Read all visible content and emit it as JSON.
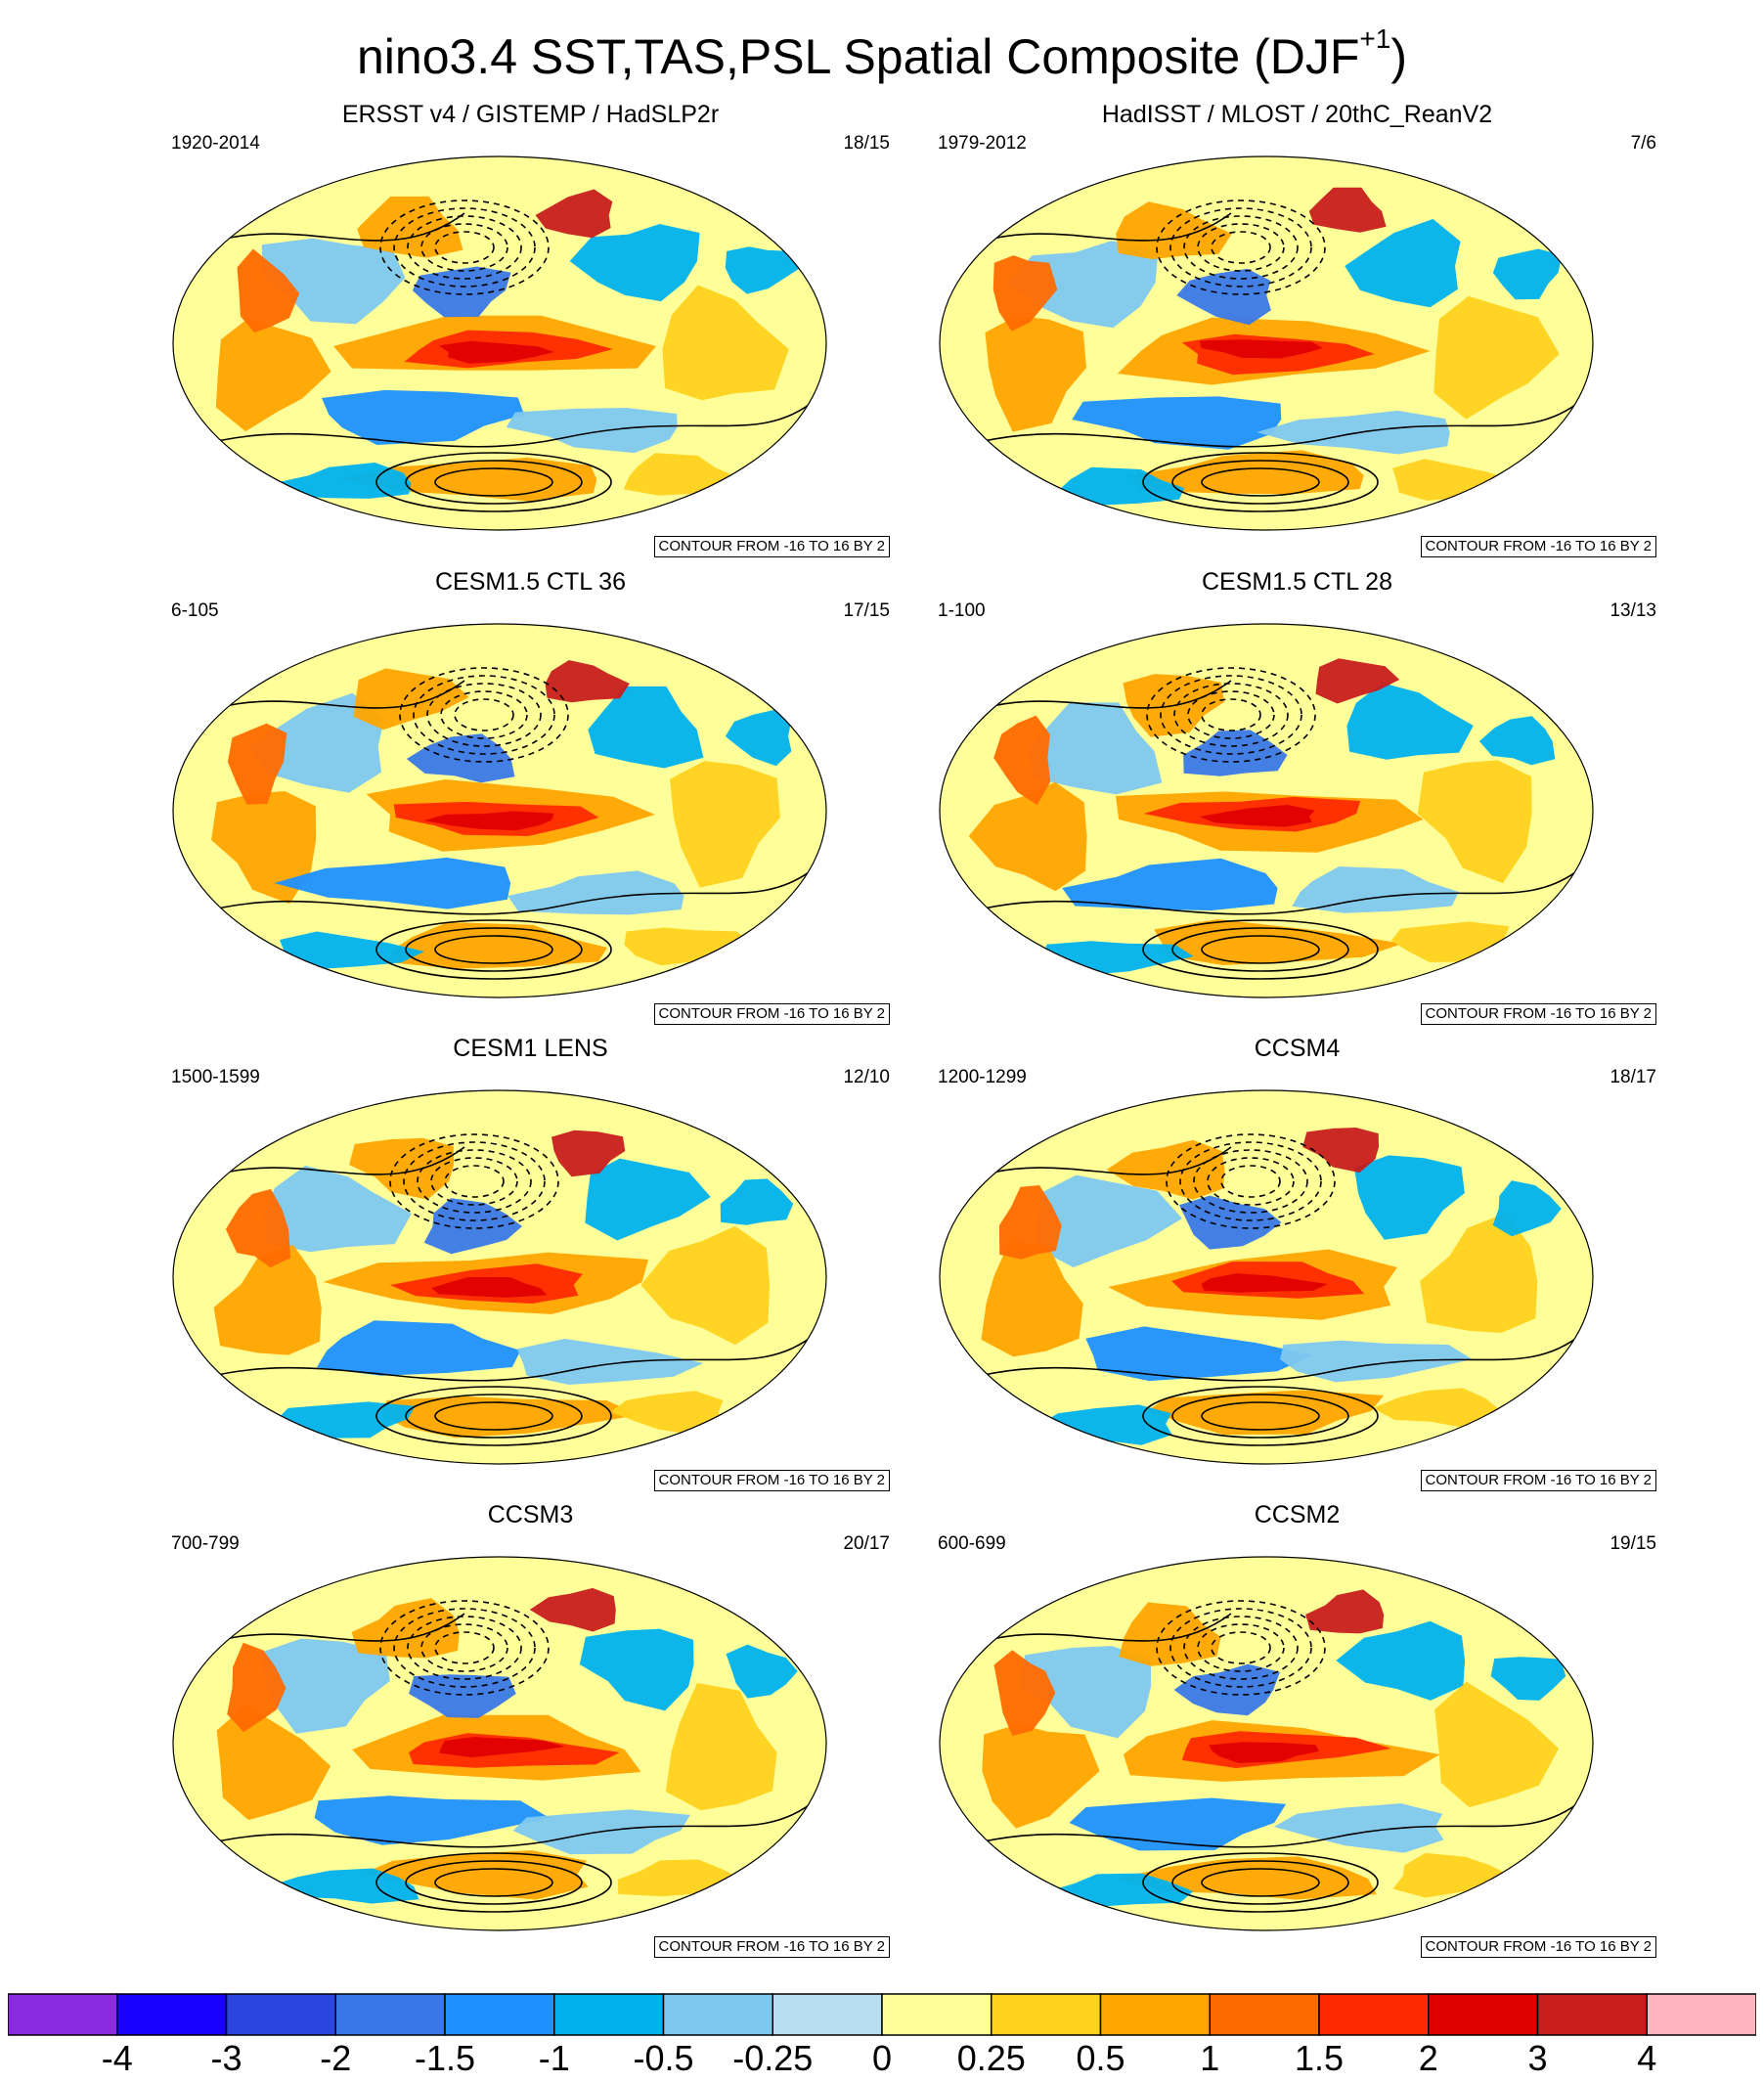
{
  "figure": {
    "title_main": "nino3.4 SST,TAS,PSL Spatial Composite (DJF",
    "title_sup": "+1",
    "title_end": ")"
  },
  "panels": [
    {
      "title": "ERSST v4 / GISTEMP / HadSLP2r",
      "period": "1920-2014",
      "count": "18/15",
      "contour_info": "CONTOUR FROM -16 TO 16 BY 2"
    },
    {
      "title": "HadISST / MLOST / 20thC_ReanV2",
      "period": "1979-2012",
      "count": "7/6",
      "contour_info": "CONTOUR FROM -16 TO 16 BY 2"
    },
    {
      "title": "CESM1.5 CTL 36",
      "period": "6-105",
      "count": "17/15",
      "contour_info": "CONTOUR FROM -16 TO 16 BY 2"
    },
    {
      "title": "CESM1.5 CTL 28",
      "period": "1-100",
      "count": "13/13",
      "contour_info": "CONTOUR FROM -16 TO 16 BY 2"
    },
    {
      "title": "CESM1 LENS",
      "period": "1500-1599",
      "count": "12/10",
      "contour_info": "CONTOUR FROM -16 TO 16 BY 2"
    },
    {
      "title": "CCSM4",
      "period": "1200-1299",
      "count": "18/17",
      "contour_info": "CONTOUR FROM -16 TO 16 BY 2"
    },
    {
      "title": "CCSM3",
      "period": "700-799",
      "count": "20/17",
      "contour_info": "CONTOUR FROM -16 TO 16 BY 2"
    },
    {
      "title": "CCSM2",
      "period": "600-699",
      "count": "19/15",
      "contour_info": "CONTOUR FROM -16 TO 16 BY 2"
    }
  ],
  "colorbar": {
    "levels": [
      "-4",
      "-3",
      "-2",
      "-1.5",
      "-1",
      "-0.5",
      "-0.25",
      "0",
      "0.25",
      "0.5",
      "1",
      "1.5",
      "2",
      "3",
      "4"
    ],
    "colors": [
      "#8a2be2",
      "#1a00ff",
      "#2a45e0",
      "#3a78e8",
      "#1e90ff",
      "#00b2ee",
      "#7ec8f0",
      "#b8def2",
      "#ffff99",
      "#ffd21e",
      "#ffa500",
      "#ff6a00",
      "#ff2a00",
      "#e00000",
      "#c81e1e",
      "#ffb6c1"
    ]
  }
}
